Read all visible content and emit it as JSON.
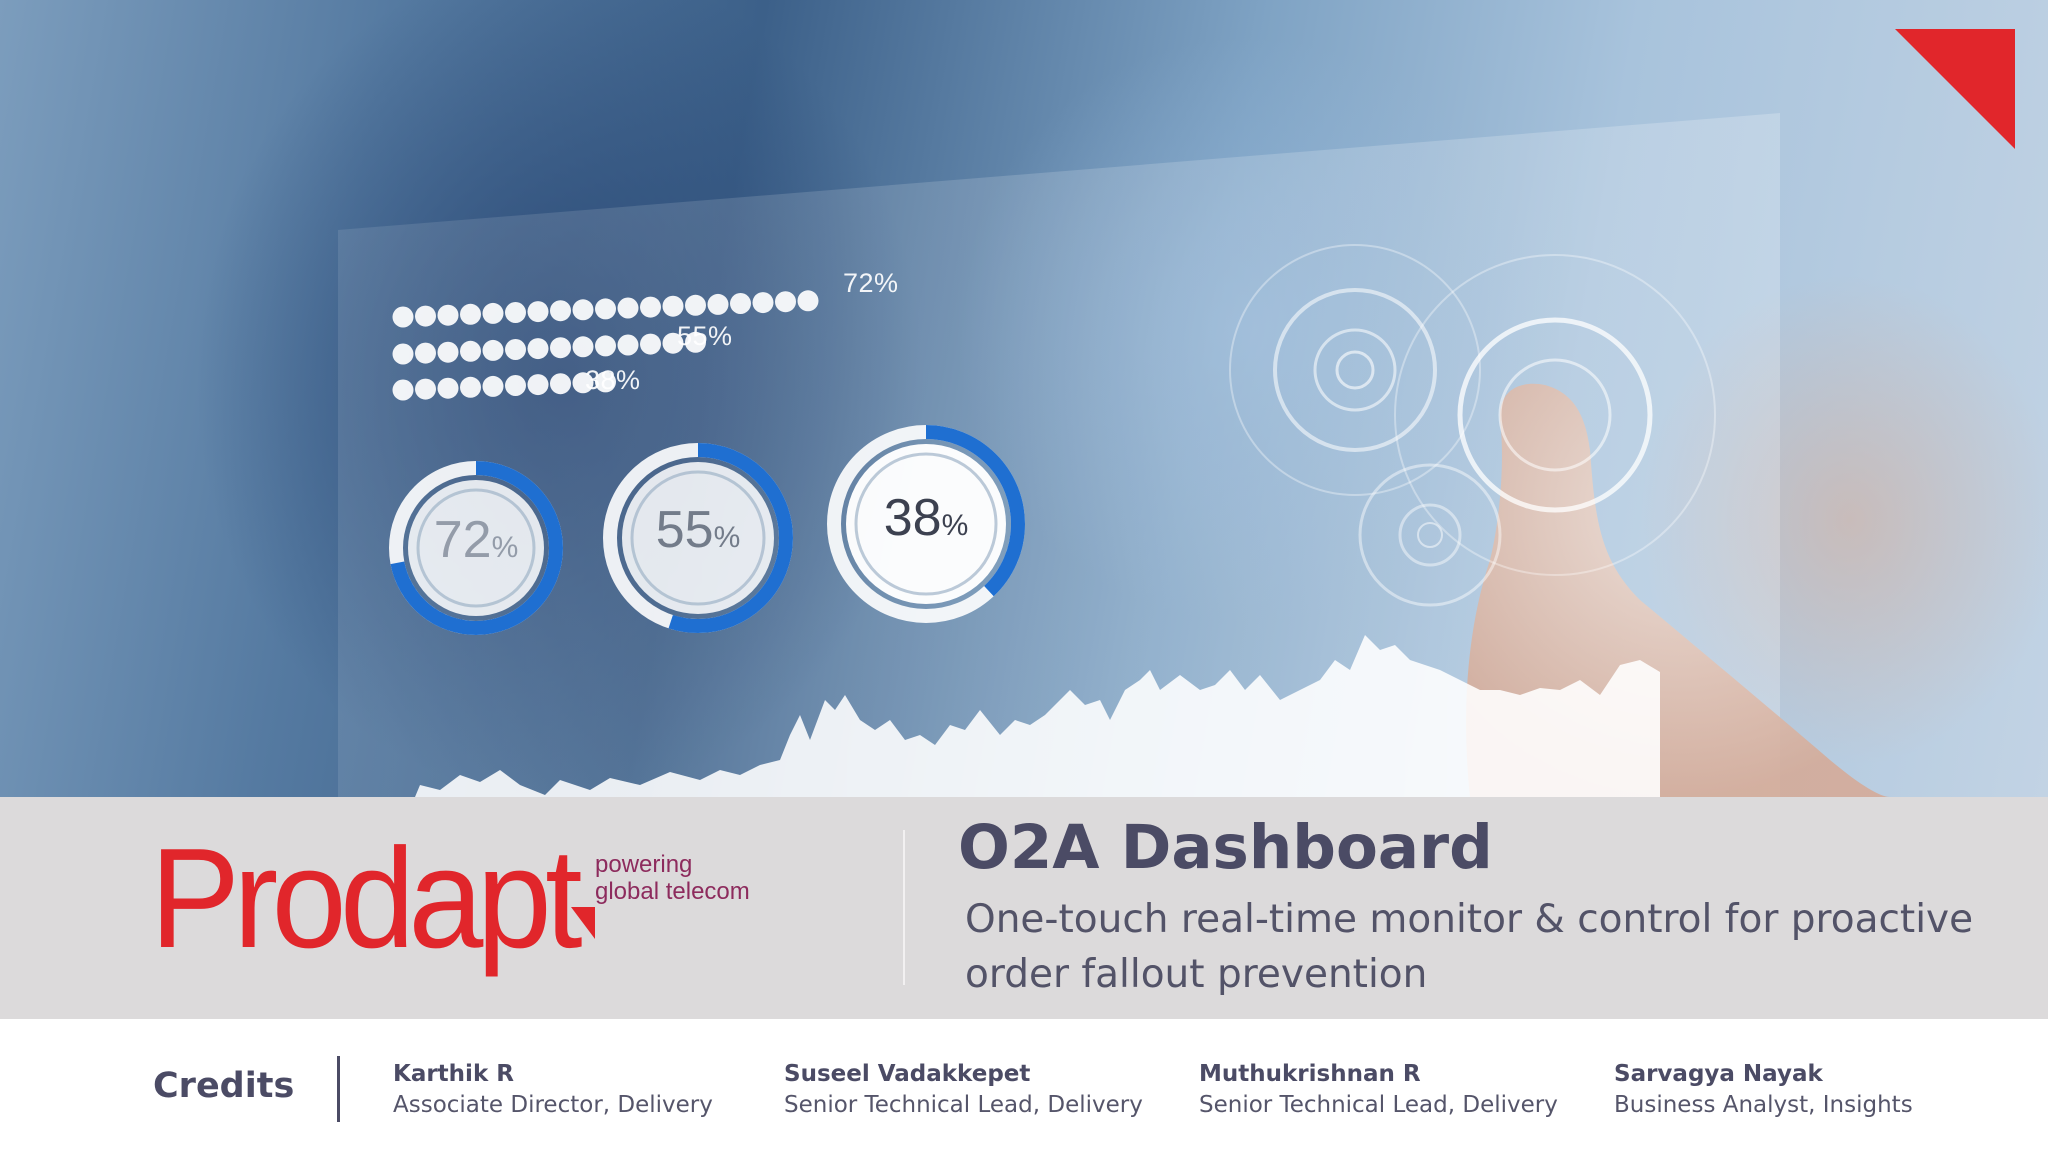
{
  "hero": {
    "bar_labels": [
      "72%",
      "55%",
      "38%"
    ],
    "ring_labels": [
      {
        "value": "72",
        "unit": "%"
      },
      {
        "value": "55",
        "unit": "%"
      },
      {
        "value": "38",
        "unit": "%"
      }
    ],
    "accent_color": "#1f6fd1"
  },
  "brand": {
    "logo_text": "Prodapt",
    "tagline_line1": "powering",
    "tagline_line2": "global telecom",
    "color": "#e1262b"
  },
  "title": "O2A Dashboard",
  "subtitle": "One-touch real-time monitor & control for proactive order fallout prevention",
  "credits": {
    "heading": "Credits",
    "people": [
      {
        "name": "Karthik R",
        "role": "Associate Director, Delivery"
      },
      {
        "name": "Suseel Vadakkepet",
        "role": "Senior Technical Lead, Delivery"
      },
      {
        "name": "Muthukrishnan R",
        "role": "Senior Technical Lead, Delivery"
      },
      {
        "name": "Sarvagya Nayak",
        "role": "Business Analyst, Insights"
      }
    ]
  }
}
